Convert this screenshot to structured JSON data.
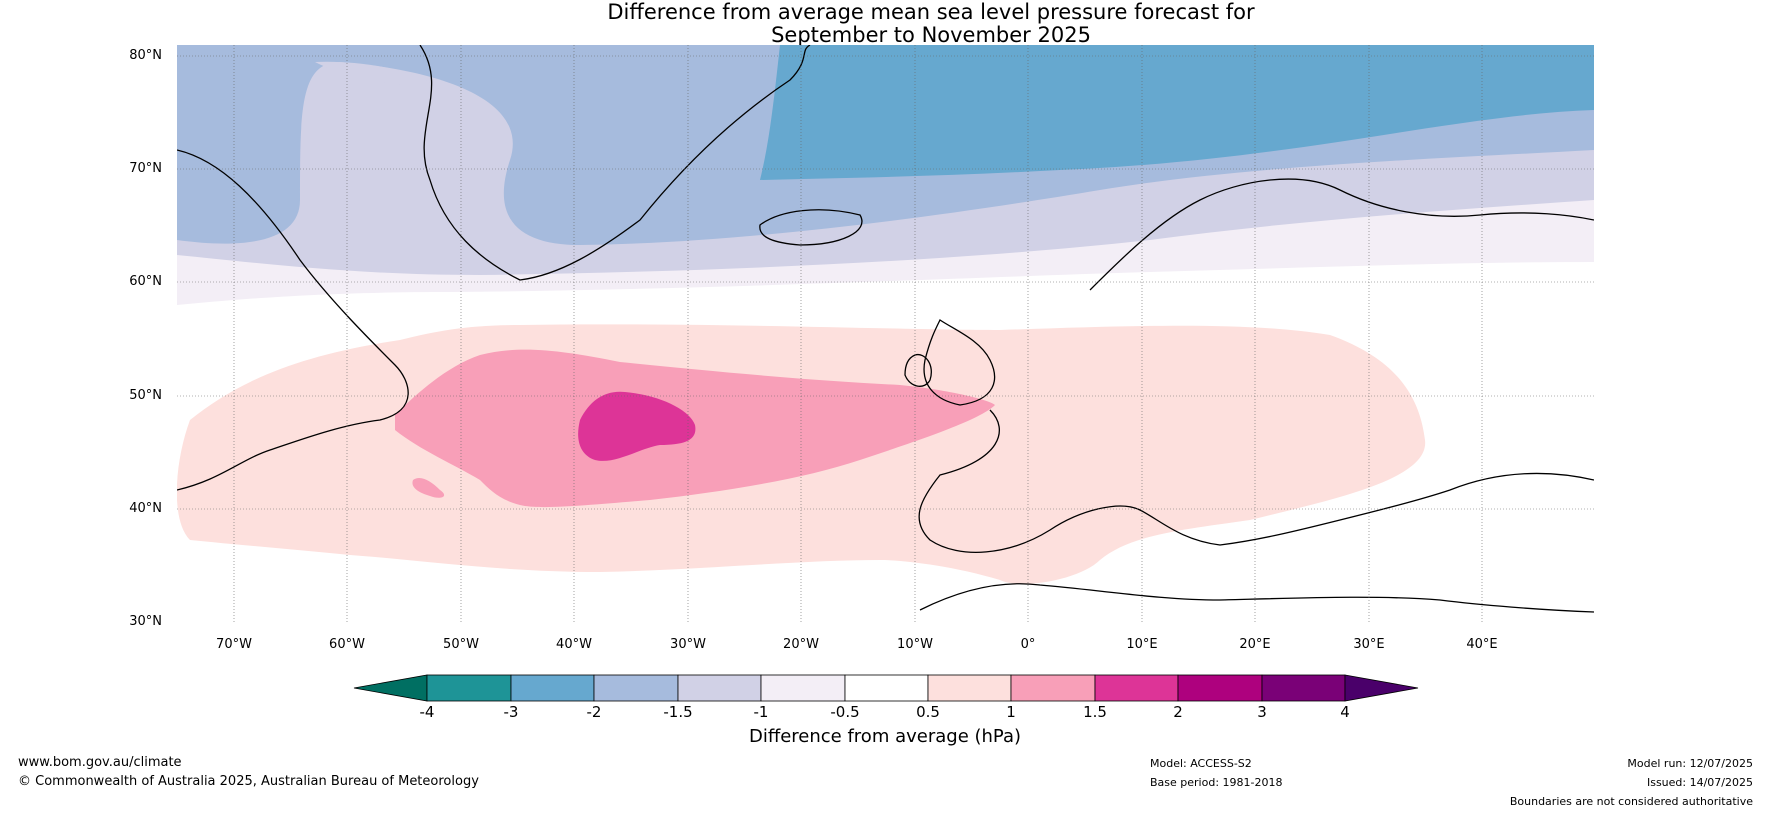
{
  "title_line1": "Difference from average mean sea level pressure forecast for",
  "title_line2": "September to November 2025",
  "map": {
    "lat_labels": [
      "80°N",
      "70°N",
      "60°N",
      "50°N",
      "40°N",
      "30°N"
    ],
    "lon_labels": [
      "70°W",
      "60°W",
      "50°W",
      "40°W",
      "30°W",
      "20°W",
      "10°W",
      "0°",
      "10°E",
      "20°E",
      "30°E",
      "40°E"
    ],
    "extent": {
      "lon": [
        -75,
        50
      ],
      "lat": [
        30,
        81
      ]
    },
    "gridlines": true
  },
  "colorbar": {
    "title": "Difference from average (hPa)",
    "tick_labels": [
      "-4",
      "-3",
      "-2",
      "-1.5",
      "-1",
      "-0.5",
      "0.5",
      "1",
      "1.5",
      "2",
      "3",
      "4"
    ],
    "colors": [
      "#006f62",
      "#1e9497",
      "#66a8cf",
      "#a6bbdd",
      "#d1d1e6",
      "#f3eef6",
      "#ffffff",
      "#fde0dd",
      "#f89fb8",
      "#dd3497",
      "#ae017e",
      "#7a0177",
      "#4a006a"
    ]
  },
  "footer": {
    "website": "www.bom.gov.au/climate",
    "copyright": "© Commonwealth of Australia 2025, Australian Bureau of Meteorology",
    "model": "Model: ACCESS-S2",
    "base_period": "Base period: 1981-2018",
    "model_run": "Model run: 12/07/2025",
    "issued": "Issued: 14/07/2025",
    "disclaimer": "Boundaries are not considered authoritative"
  }
}
